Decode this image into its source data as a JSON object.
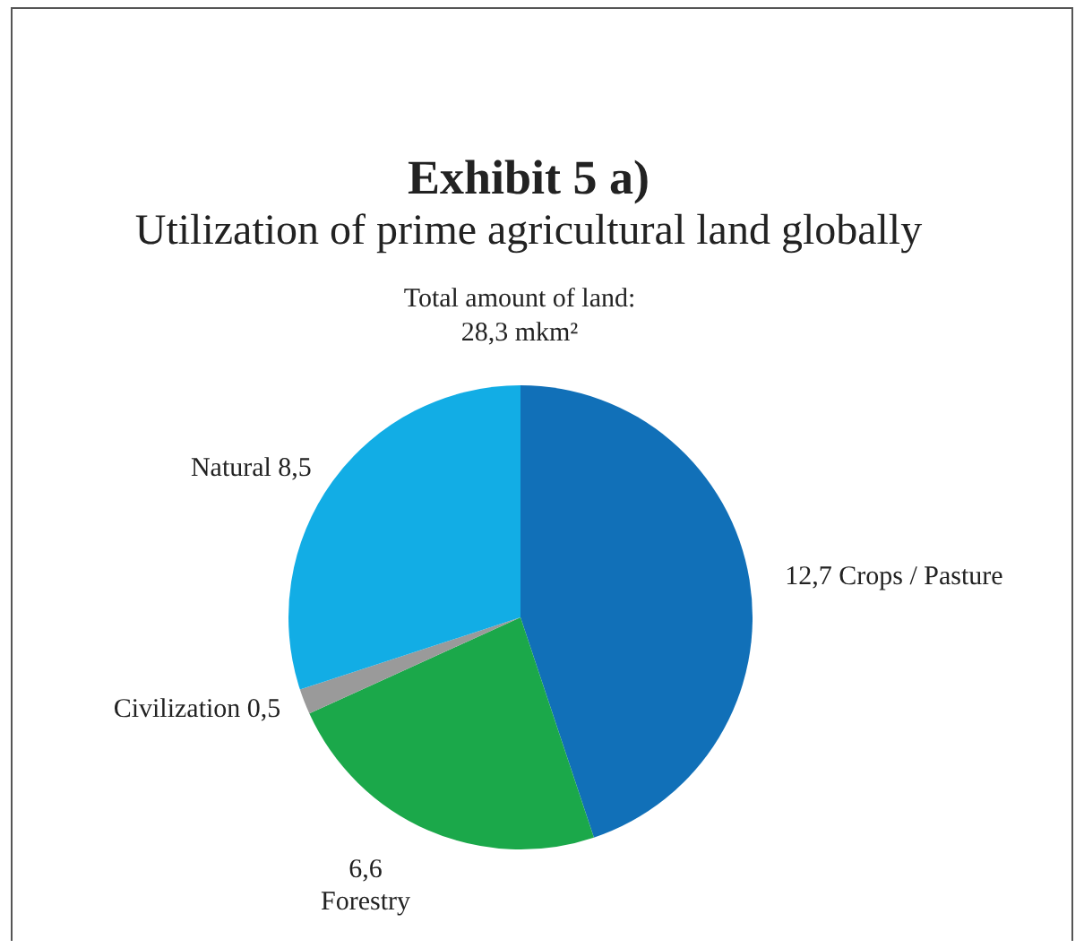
{
  "chart_data": {
    "type": "pie",
    "title": "Exhibit 5 a)",
    "subtitle": "Utilization of prime agricultural land globally",
    "annotations": [
      "Total amount of land:\n28,3 mkm²"
    ],
    "categories": [
      "Crops / Pasture",
      "Forestry",
      "Civilization",
      "Natural"
    ],
    "values": [
      12.7,
      6.6,
      0.5,
      8.5
    ],
    "value_labels": [
      "12,7",
      "6,6",
      "0,5",
      "8,5"
    ],
    "colors": [
      "#1170b8",
      "#1ba84a",
      "#9a9a9a",
      "#12ade5"
    ],
    "legend": false
  }
}
